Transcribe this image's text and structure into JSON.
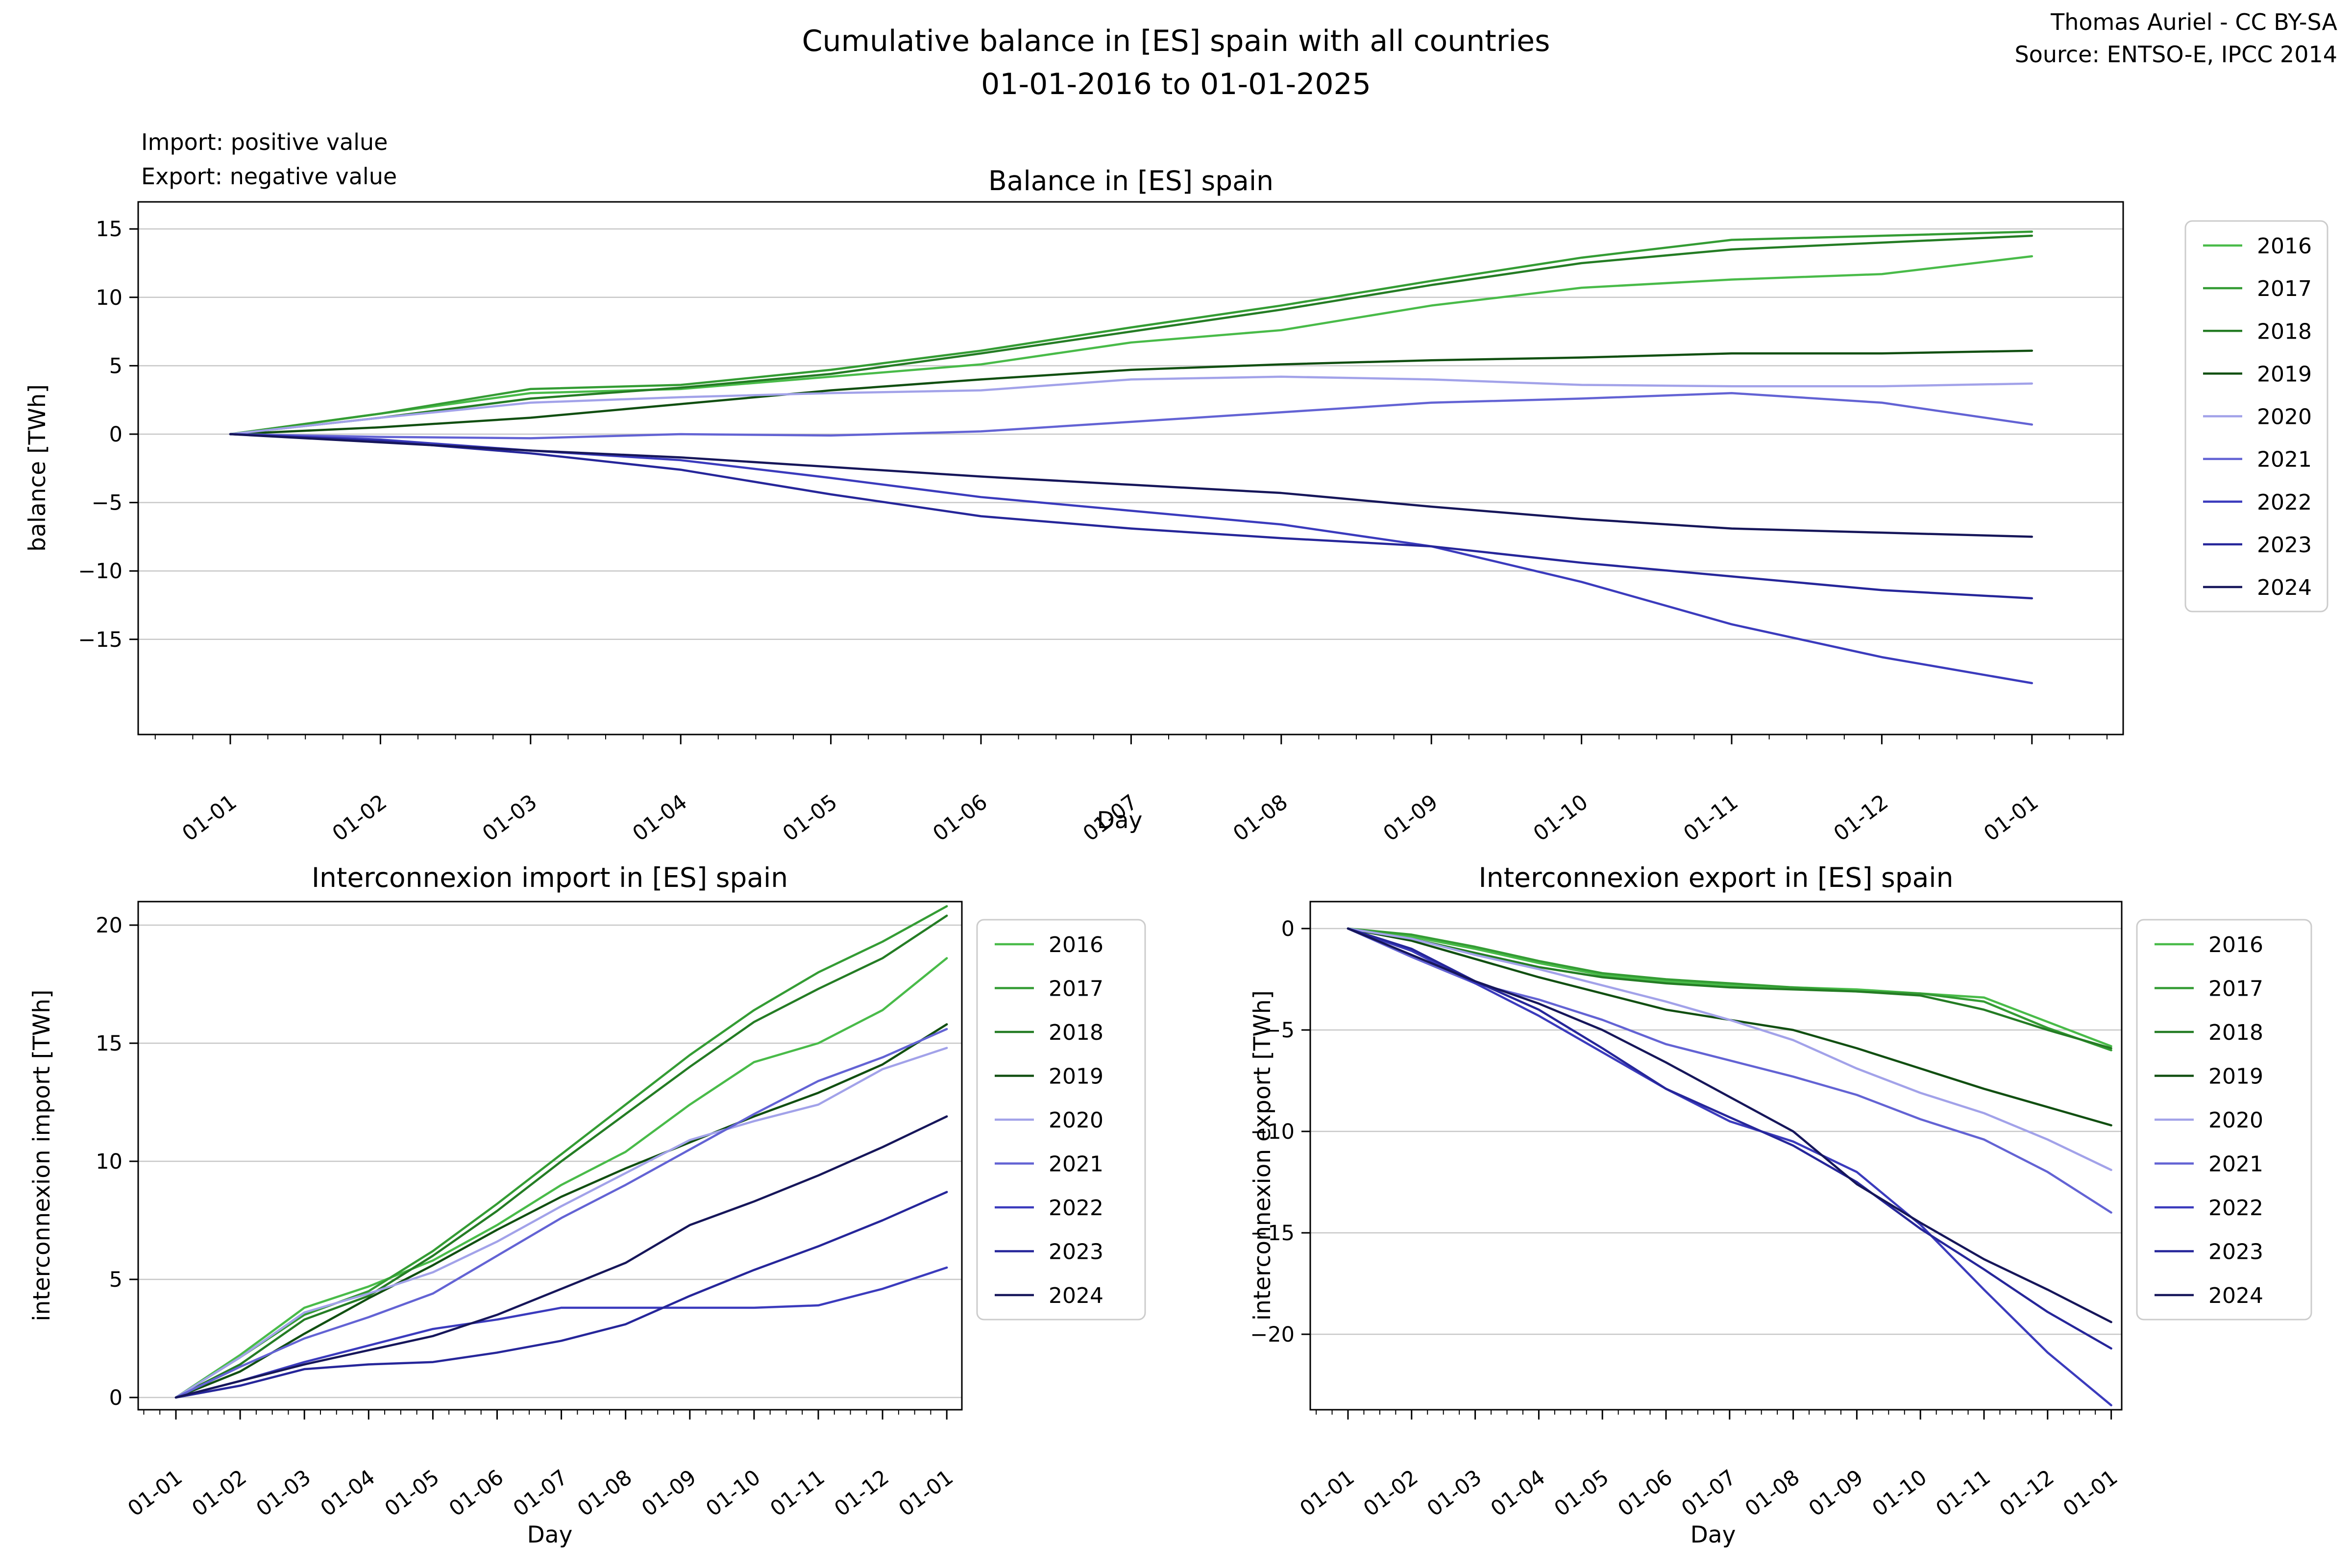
{
  "header": {
    "title_line1": "Cumulative balance in [ES] spain with all countries",
    "title_line2": "01-01-2016 to 01-01-2025",
    "attribution_line1": "Thomas Auriel - CC BY-SA",
    "attribution_line2": "Source: ENTSO-E, IPCC 2014",
    "note_line1": "Import: positive value",
    "note_line2": "Export: negative value"
  },
  "colors": {
    "2016": "#49bb49",
    "2017": "#349c34",
    "2018": "#247c24",
    "2019": "#114f11",
    "2020": "#a2a2e9",
    "2021": "#6363d4",
    "2022": "#3b3bbd",
    "2023": "#26269a",
    "2024": "#16165a"
  },
  "grid_color": "#c8c8c8",
  "legend_years": [
    "2016",
    "2017",
    "2018",
    "2019",
    "2020",
    "2021",
    "2022",
    "2023",
    "2024"
  ],
  "chart_data": [
    {
      "id": "balance",
      "type": "line",
      "title": "Balance in [ES] spain",
      "xlabel": "Day",
      "ylabel": "balance [TWh]",
      "unit": "TWh",
      "categories": [
        "01-01",
        "01-02",
        "01-03",
        "01-04",
        "01-05",
        "01-06",
        "01-07",
        "01-08",
        "01-09",
        "01-10",
        "01-11",
        "01-12",
        "01-01"
      ],
      "y_ticks": [
        15,
        10,
        5,
        0,
        -5,
        -10,
        -15
      ],
      "ylim": [
        -21.9,
        17.0
      ],
      "grid": "horizontal",
      "legend_position": "outside-right",
      "series": [
        {
          "name": "2016",
          "values": [
            0,
            1.5,
            3.0,
            3.3,
            4.2,
            5.1,
            6.7,
            7.6,
            9.4,
            10.7,
            11.3,
            11.7,
            13.0
          ]
        },
        {
          "name": "2017",
          "values": [
            0,
            1.5,
            3.3,
            3.6,
            4.7,
            6.1,
            7.8,
            9.4,
            11.2,
            12.9,
            14.2,
            14.5,
            14.8
          ]
        },
        {
          "name": "2018",
          "values": [
            0,
            1.2,
            2.6,
            3.4,
            4.4,
            5.9,
            7.5,
            9.1,
            10.9,
            12.5,
            13.5,
            14.0,
            14.5
          ]
        },
        {
          "name": "2019",
          "values": [
            0,
            0.5,
            1.2,
            2.2,
            3.2,
            4.0,
            4.7,
            5.1,
            5.4,
            5.6,
            5.9,
            5.9,
            6.1
          ]
        },
        {
          "name": "2020",
          "values": [
            0,
            1.2,
            2.3,
            2.7,
            3.0,
            3.2,
            4.0,
            4.2,
            4.0,
            3.6,
            3.5,
            3.5,
            3.7
          ]
        },
        {
          "name": "2021",
          "values": [
            0,
            -0.2,
            -0.3,
            0.0,
            -0.1,
            0.2,
            0.9,
            1.6,
            2.3,
            2.6,
            3.0,
            2.3,
            0.7
          ]
        },
        {
          "name": "2022",
          "values": [
            0,
            -0.4,
            -1.2,
            -1.9,
            -3.2,
            -4.6,
            -5.6,
            -6.6,
            -8.2,
            -10.8,
            -13.9,
            -16.3,
            -18.2
          ]
        },
        {
          "name": "2023",
          "values": [
            0,
            -0.5,
            -1.4,
            -2.6,
            -4.4,
            -6.0,
            -6.9,
            -7.6,
            -8.2,
            -9.4,
            -10.4,
            -11.4,
            -12.0
          ]
        },
        {
          "name": "2024",
          "values": [
            0,
            -0.6,
            -1.2,
            -1.7,
            -2.4,
            -3.1,
            -3.7,
            -4.3,
            -5.3,
            -6.2,
            -6.9,
            -7.2,
            -7.5
          ]
        }
      ]
    },
    {
      "id": "import",
      "type": "line",
      "title": "Interconnexion import in [ES] spain",
      "xlabel": "Day",
      "ylabel": "interconnexion import [TWh]",
      "unit": "TWh",
      "categories": [
        "01-01",
        "01-02",
        "01-03",
        "01-04",
        "01-05",
        "01-06",
        "01-07",
        "01-08",
        "01-09",
        "01-10",
        "01-11",
        "01-12",
        "01-01"
      ],
      "y_ticks": [
        20,
        15,
        10,
        5,
        0
      ],
      "ylim": [
        -0.5,
        21.0
      ],
      "grid": "horizontal",
      "legend_position": "outside-right",
      "series": [
        {
          "name": "2016",
          "values": [
            0,
            1.8,
            3.8,
            4.7,
            5.8,
            7.3,
            9.0,
            10.4,
            12.4,
            14.2,
            15.0,
            16.4,
            18.6
          ]
        },
        {
          "name": "2017",
          "values": [
            0,
            1.7,
            3.5,
            4.5,
            6.2,
            8.2,
            10.3,
            12.4,
            14.5,
            16.4,
            18.0,
            19.3,
            20.8
          ]
        },
        {
          "name": "2018",
          "values": [
            0,
            1.4,
            3.3,
            4.3,
            6.0,
            7.9,
            10.0,
            12.0,
            14.0,
            15.9,
            17.3,
            18.6,
            20.4
          ]
        },
        {
          "name": "2019",
          "values": [
            0,
            1.1,
            2.7,
            4.2,
            5.6,
            7.1,
            8.5,
            9.7,
            10.8,
            11.9,
            12.9,
            14.1,
            15.8
          ]
        },
        {
          "name": "2020",
          "values": [
            0,
            1.7,
            3.6,
            4.4,
            5.3,
            6.6,
            8.1,
            9.5,
            10.9,
            11.7,
            12.4,
            13.9,
            14.8
          ]
        },
        {
          "name": "2021",
          "values": [
            0,
            1.3,
            2.5,
            3.4,
            4.4,
            6.0,
            7.6,
            9.0,
            10.5,
            12.0,
            13.4,
            14.4,
            15.6
          ]
        },
        {
          "name": "2022",
          "values": [
            0,
            0.7,
            1.5,
            2.2,
            2.9,
            3.3,
            3.8,
            3.8,
            3.8,
            3.8,
            3.9,
            4.6,
            5.5
          ]
        },
        {
          "name": "2023",
          "values": [
            0,
            0.5,
            1.2,
            1.4,
            1.5,
            1.9,
            2.4,
            3.1,
            4.3,
            5.4,
            6.4,
            7.5,
            8.7
          ]
        },
        {
          "name": "2024",
          "values": [
            0,
            0.7,
            1.4,
            2.0,
            2.6,
            3.5,
            4.6,
            5.7,
            7.3,
            8.3,
            9.4,
            10.6,
            11.9
          ]
        }
      ]
    },
    {
      "id": "export",
      "type": "line",
      "title": "Interconnexion export in [ES] spain",
      "xlabel": "Day",
      "ylabel": "interconnexion export [TWh]",
      "unit": "TWh",
      "categories": [
        "01-01",
        "01-02",
        "01-03",
        "01-04",
        "01-05",
        "01-06",
        "01-07",
        "01-08",
        "01-09",
        "01-10",
        "01-11",
        "01-12",
        "01-01"
      ],
      "y_ticks": [
        0,
        -5,
        -10,
        -15,
        -20
      ],
      "ylim": [
        -23.7,
        1.3
      ],
      "grid": "horizontal",
      "legend_position": "outside-right",
      "series": [
        {
          "name": "2016",
          "values": [
            0,
            -0.4,
            -1.0,
            -1.7,
            -2.3,
            -2.6,
            -2.8,
            -2.9,
            -3.0,
            -3.2,
            -3.4,
            -4.6,
            -5.8
          ]
        },
        {
          "name": "2017",
          "values": [
            0,
            -0.3,
            -0.9,
            -1.6,
            -2.2,
            -2.5,
            -2.7,
            -2.9,
            -3.1,
            -3.2,
            -3.6,
            -4.9,
            -6.0
          ]
        },
        {
          "name": "2018",
          "values": [
            0,
            -0.5,
            -1.2,
            -1.9,
            -2.4,
            -2.7,
            -2.9,
            -3.0,
            -3.1,
            -3.3,
            -4.0,
            -5.0,
            -5.9
          ]
        },
        {
          "name": "2019",
          "values": [
            0,
            -0.6,
            -1.5,
            -2.4,
            -3.2,
            -4.0,
            -4.5,
            -5.0,
            -5.9,
            -6.9,
            -7.9,
            -8.8,
            -9.7
          ]
        },
        {
          "name": "2020",
          "values": [
            0,
            -0.5,
            -1.3,
            -2.0,
            -2.8,
            -3.6,
            -4.5,
            -5.5,
            -6.9,
            -8.1,
            -9.1,
            -10.4,
            -11.9
          ]
        },
        {
          "name": "2021",
          "values": [
            0,
            -1.4,
            -2.7,
            -3.5,
            -4.5,
            -5.7,
            -6.5,
            -7.3,
            -8.2,
            -9.4,
            -10.4,
            -12.0,
            -14.0
          ]
        },
        {
          "name": "2022",
          "values": [
            0,
            -1.1,
            -2.7,
            -4.3,
            -6.1,
            -7.9,
            -9.5,
            -10.5,
            -12.0,
            -14.6,
            -17.8,
            -20.9,
            -23.5
          ]
        },
        {
          "name": "2023",
          "values": [
            0,
            -1.0,
            -2.6,
            -4.0,
            -5.9,
            -7.9,
            -9.3,
            -10.7,
            -12.5,
            -14.8,
            -16.8,
            -18.9,
            -20.7
          ]
        },
        {
          "name": "2024",
          "values": [
            0,
            -1.3,
            -2.6,
            -3.7,
            -5.0,
            -6.6,
            -8.3,
            -10.0,
            -12.6,
            -14.5,
            -16.3,
            -17.8,
            -19.4
          ]
        }
      ]
    }
  ]
}
